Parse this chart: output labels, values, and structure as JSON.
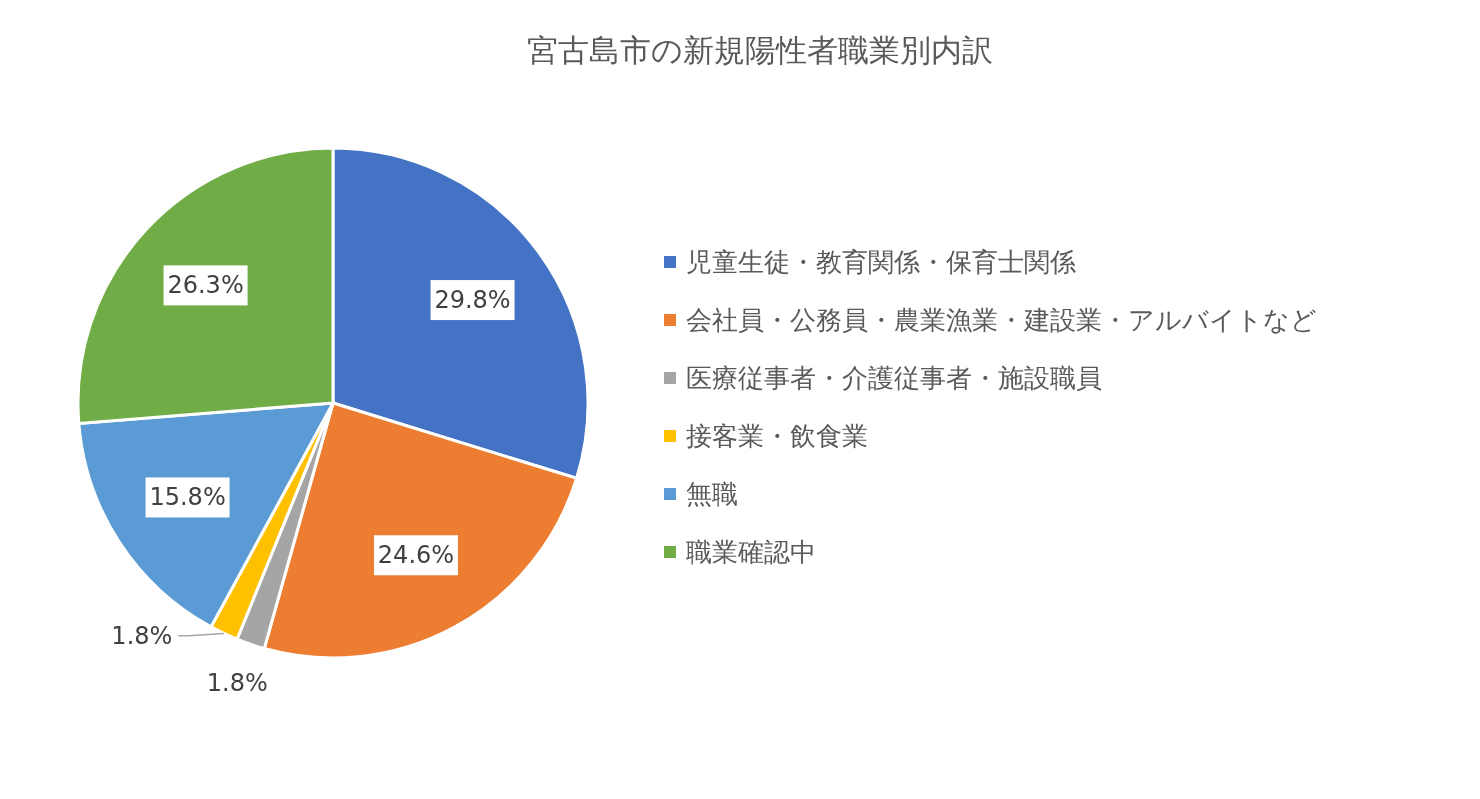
{
  "chart_data": {
    "type": "pie",
    "title": "宮古島市の新規陽性者職業別内訳",
    "categories": [
      "児童生徒・教育関係・保育士関係",
      "会社員・公務員・農業漁業・建設業・アルバイトなど",
      "医療従事者・介護従事者・施設職員",
      "接客業・飲食業",
      "無職",
      "職業確認中"
    ],
    "values": [
      29.8,
      24.6,
      1.8,
      1.8,
      15.8,
      26.3
    ],
    "colors": [
      "#4472c4",
      "#ed7d31",
      "#a5a5a5",
      "#ffc000",
      "#5b9bd5",
      "#70ad47"
    ],
    "value_labels": [
      "29.8%",
      "24.6%",
      "1.8%",
      "1.8%",
      "15.8%",
      "26.3%"
    ],
    "legend": "right"
  }
}
